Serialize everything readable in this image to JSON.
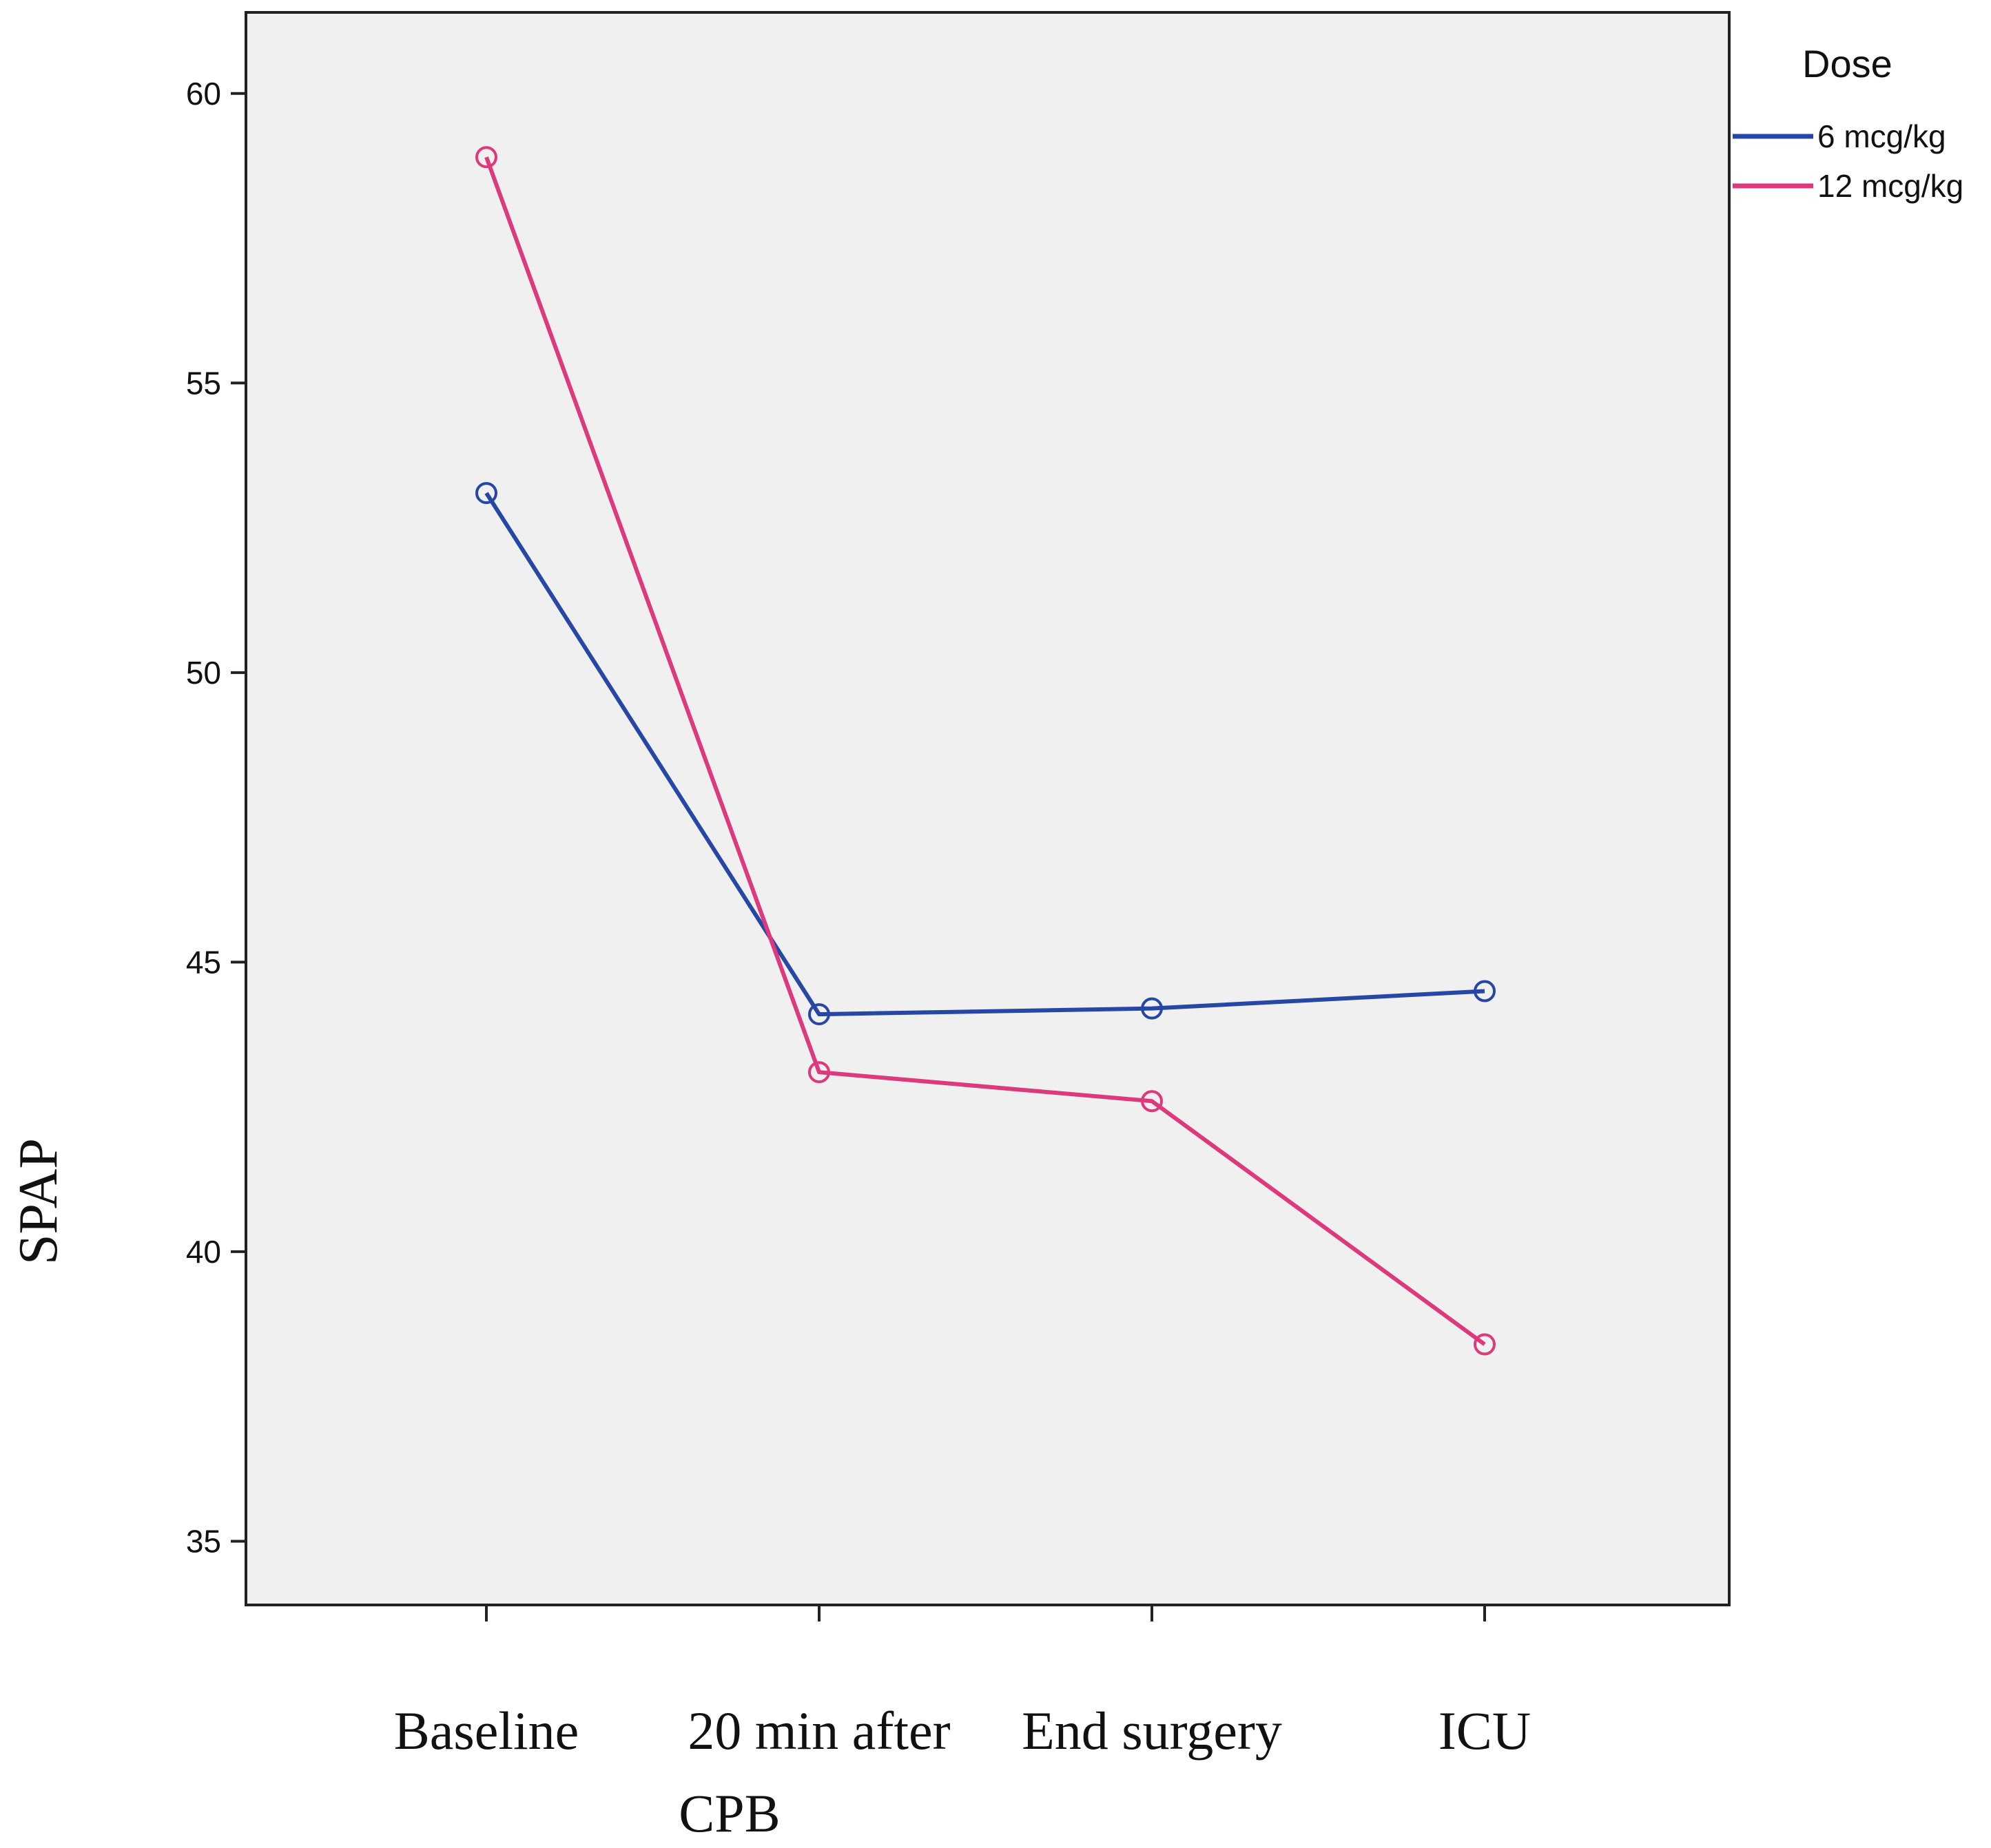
{
  "chart_data": {
    "type": "line",
    "title": "",
    "xlabel": "",
    "ylabel": "SPAP",
    "categories": [
      [
        "Baseline"
      ],
      [
        "20 min after",
        "CPB"
      ],
      [
        "End surgery"
      ],
      [
        "ICU"
      ]
    ],
    "series": [
      {
        "name": "6 mcg/kg",
        "color": "#2747a4",
        "values": [
          53.1,
          44.1,
          44.2,
          44.5
        ]
      },
      {
        "name": "12 mcg/kg",
        "color": "#dc3a7d",
        "values": [
          58.9,
          43.1,
          42.6,
          38.4
        ]
      }
    ],
    "yticks": [
      35,
      40,
      45,
      50,
      55,
      60
    ],
    "ylim": [
      33.9,
      61.4
    ],
    "legend": {
      "title": "Dose",
      "position": "top-right"
    },
    "plot_background": "#f0f0f0",
    "grid": false
  }
}
